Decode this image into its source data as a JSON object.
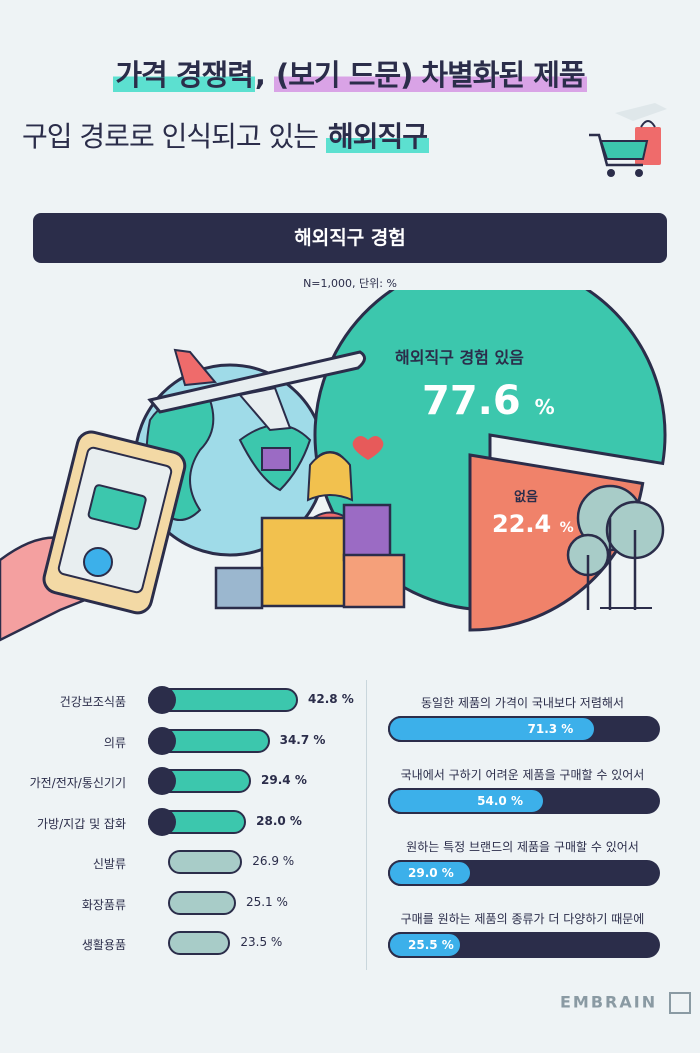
{
  "title": {
    "line1_part1": "가격 경쟁력",
    "line1_comma": ", ",
    "line1_part2": "(보기 드문) 차별화된 제품",
    "line2_regular": "구입 경로로 인식되고 있는",
    "line2_bold": "해외직구"
  },
  "section_title": "해외직구 경험",
  "note": "N=1,000, 단위: %",
  "chart_data": [
    {
      "type": "pie",
      "title": "해외직구 경험",
      "slices": [
        {
          "label": "해외직구 경험 있음",
          "value": 77.6,
          "color": "#3cc7ad"
        },
        {
          "label": "없음",
          "value": 22.4,
          "color": "#f0826a"
        }
      ]
    },
    {
      "type": "bar",
      "orientation": "horizontal",
      "categories": [
        "건강보조식품",
        "의류",
        "가전/전자/통신기기",
        "가방/지갑 및 잡화",
        "신발류",
        "화장품류",
        "생활용품"
      ],
      "values": [
        42.8,
        34.7,
        29.4,
        28.0,
        26.9,
        25.1,
        23.5
      ],
      "value_labels": [
        "42.8",
        "34.7",
        "29.4",
        "28.0",
        "26.9",
        "25.1",
        "23.5"
      ],
      "highlight": [
        true,
        true,
        true,
        true,
        false,
        false,
        false
      ],
      "colors": {
        "highlight": "#3cc7ad",
        "muted": "#a8ccc8"
      }
    },
    {
      "type": "bar",
      "orientation": "horizontal",
      "categories": [
        "동일한 제품의 가격이 국내보다 저렴해서",
        "국내에서 구하기 어려운 제품을 구매할 수 있어서",
        "원하는 특정 브랜드의 제품을 구매할 수 있어서",
        "구매를 원하는 제품의 종류가 더 다양하기 때문에"
      ],
      "values": [
        71.3,
        54.0,
        29.0,
        25.5
      ],
      "value_labels": [
        "71.3",
        "54.0",
        "29.0",
        "25.5"
      ],
      "colors": {
        "fill": "#3cb0ea",
        "track": "#2b2d4a"
      }
    }
  ],
  "unit": "%",
  "logo": "EMBRAIN"
}
